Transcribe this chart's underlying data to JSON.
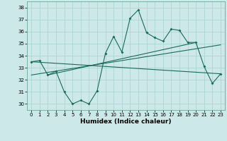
{
  "xlabel": "Humidex (Indice chaleur)",
  "bg_color": "#cce8e8",
  "line_color": "#1a6b5a",
  "xlim": [
    -0.5,
    23.5
  ],
  "ylim": [
    29.5,
    38.5
  ],
  "yticks": [
    30,
    31,
    32,
    33,
    34,
    35,
    36,
    37,
    38
  ],
  "xticks": [
    0,
    1,
    2,
    3,
    4,
    5,
    6,
    7,
    8,
    9,
    10,
    11,
    12,
    13,
    14,
    15,
    16,
    17,
    18,
    19,
    20,
    21,
    22,
    23
  ],
  "series1_x": [
    0,
    1,
    2,
    3,
    4,
    5,
    6,
    7,
    8,
    9,
    10,
    11,
    12,
    13,
    14,
    15,
    16,
    17,
    18,
    19,
    20,
    21,
    22,
    23
  ],
  "series1_y": [
    33.5,
    33.6,
    32.4,
    32.7,
    31.0,
    30.0,
    30.3,
    30.0,
    31.1,
    34.2,
    35.6,
    34.3,
    37.1,
    37.8,
    35.9,
    35.5,
    35.2,
    36.2,
    36.1,
    35.1,
    35.1,
    33.1,
    31.7,
    32.5
  ],
  "series2_x": [
    0,
    23
  ],
  "series2_y": [
    33.5,
    32.5
  ],
  "series3_x": [
    0,
    23
  ],
  "series3_y": [
    32.4,
    34.9
  ],
  "series4_x": [
    2,
    20
  ],
  "series4_y": [
    32.4,
    35.1
  ]
}
